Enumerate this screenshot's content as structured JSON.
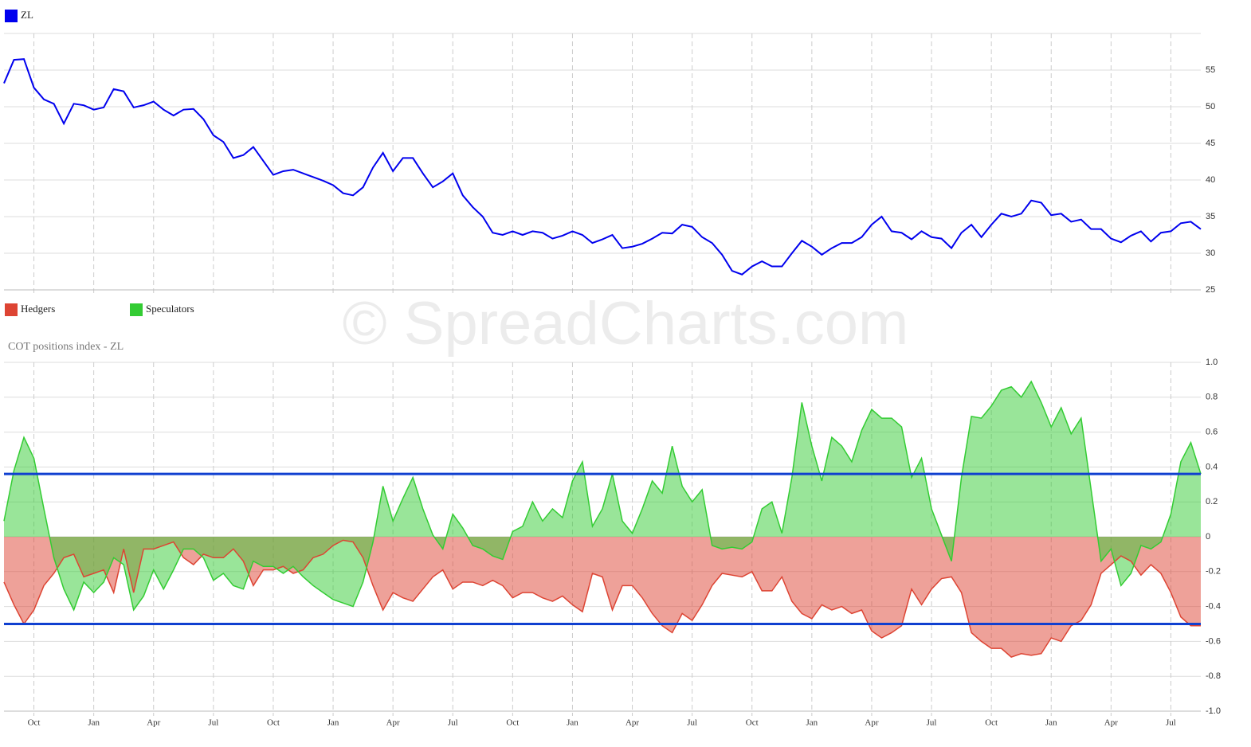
{
  "watermark": "© SpreadCharts.com",
  "chart_data": [
    {
      "type": "line",
      "series": [
        {
          "name": "ZL",
          "color": "#0000ee",
          "values": [
            53.2,
            56.4,
            56.5,
            52.6,
            51,
            50.4,
            47.7,
            50.4,
            50.2,
            49.6,
            49.9,
            52.4,
            52.1,
            49.9,
            50.2,
            50.7,
            49.6,
            48.8,
            49.6,
            49.7,
            48.3,
            46.1,
            45.2,
            43,
            43.4,
            44.5,
            42.6,
            40.7,
            41.2,
            41.4,
            40.9,
            40.4,
            39.9,
            39.3,
            38.2,
            37.9,
            39,
            41.7,
            43.7,
            41.2,
            43,
            43,
            40.9,
            39,
            39.8,
            40.9,
            37.9,
            36.3,
            35,
            32.8,
            32.5,
            33,
            32.5,
            33,
            32.8,
            32,
            32.4,
            33,
            32.5,
            31.4,
            31.9,
            32.5,
            30.7,
            30.9,
            31.3,
            32,
            32.8,
            32.7,
            33.9,
            33.6,
            32.2,
            31.4,
            29.8,
            27.6,
            27.1,
            28.2,
            28.9,
            28.2,
            28.2,
            30,
            31.7,
            30.9,
            29.8,
            30.7,
            31.4,
            31.4,
            32.2,
            33.9,
            35,
            33,
            32.8,
            31.9,
            33,
            32.2,
            32,
            30.7,
            32.8,
            33.9,
            32.2,
            33.9,
            35.4,
            35,
            35.4,
            37.2,
            36.9,
            35.2,
            35.4,
            34.3,
            34.6,
            33.3,
            33.3,
            32,
            31.5,
            32.4,
            33,
            31.6,
            32.8,
            33,
            34.1,
            34.3,
            33.3
          ]
        }
      ],
      "ylim": [
        25,
        60
      ],
      "yticks": [
        25,
        30,
        35,
        40,
        45,
        50,
        55
      ],
      "grid": true
    },
    {
      "type": "area",
      "title": "COT positions index - ZL",
      "categories": [
        null,
        null,
        null,
        "Oct",
        null,
        null,
        null,
        null,
        null,
        "Jan",
        null,
        null,
        null,
        null,
        null,
        "Apr",
        null,
        null,
        null,
        null,
        null,
        "Jul",
        null,
        null,
        null,
        null,
        null,
        "Oct",
        null,
        null,
        null,
        null,
        null,
        "Jan",
        null,
        null,
        null,
        null,
        null,
        "Apr",
        null,
        null,
        null,
        null,
        null,
        "Jul",
        null,
        null,
        null,
        null,
        null,
        "Oct",
        null,
        null,
        null,
        null,
        null,
        "Jan",
        null,
        null,
        null,
        null,
        null,
        "Apr",
        null,
        null,
        null,
        null,
        null,
        "Jul",
        null,
        null,
        null,
        null,
        null,
        "Oct",
        null,
        null,
        null,
        null,
        null,
        "Jan",
        null,
        null,
        null,
        null,
        null,
        "Apr",
        null,
        null,
        null,
        null,
        null,
        "Jul",
        null,
        null,
        null,
        null,
        null,
        "Oct",
        null,
        null,
        null,
        null,
        null,
        "Jan",
        null,
        null,
        null,
        null,
        null,
        "Apr",
        null,
        null,
        null,
        null,
        null,
        "Jul",
        null,
        null,
        null
      ],
      "series": [
        {
          "name": "Hedgers",
          "color": "#dd4433",
          "values": [
            -0.26,
            -0.39,
            -0.5,
            -0.42,
            -0.28,
            -0.21,
            -0.12,
            -0.1,
            -0.23,
            -0.21,
            -0.19,
            -0.32,
            -0.07,
            -0.32,
            -0.07,
            -0.07,
            -0.05,
            -0.03,
            -0.12,
            -0.16,
            -0.1,
            -0.12,
            -0.12,
            -0.07,
            -0.14,
            -0.28,
            -0.19,
            -0.19,
            -0.17,
            -0.21,
            -0.19,
            -0.12,
            -0.1,
            -0.05,
            -0.02,
            -0.03,
            -0.12,
            -0.28,
            -0.42,
            -0.32,
            -0.35,
            -0.37,
            -0.3,
            -0.23,
            -0.19,
            -0.3,
            -0.26,
            -0.26,
            -0.28,
            -0.25,
            -0.28,
            -0.35,
            -0.32,
            -0.32,
            -0.35,
            -0.37,
            -0.34,
            -0.39,
            -0.43,
            -0.21,
            -0.23,
            -0.42,
            -0.28,
            -0.28,
            -0.35,
            -0.44,
            -0.51,
            -0.55,
            -0.44,
            -0.48,
            -0.39,
            -0.28,
            -0.21,
            -0.22,
            -0.23,
            -0.2,
            -0.31,
            -0.31,
            -0.23,
            -0.37,
            -0.44,
            -0.47,
            -0.39,
            -0.42,
            -0.4,
            -0.44,
            -0.42,
            -0.54,
            -0.58,
            -0.55,
            -0.51,
            -0.3,
            -0.39,
            -0.3,
            -0.24,
            -0.23,
            -0.32,
            -0.55,
            -0.6,
            -0.64,
            -0.64,
            -0.69,
            -0.67,
            -0.68,
            -0.67,
            -0.58,
            -0.6,
            -0.51,
            -0.48,
            -0.39,
            -0.21,
            -0.16,
            -0.11,
            -0.14,
            -0.22,
            -0.16,
            -0.21,
            -0.32,
            -0.46,
            -0.51,
            -0.51
          ]
        },
        {
          "name": "Speculators",
          "color": "#33cc33",
          "values": [
            0.09,
            0.38,
            0.57,
            0.45,
            0.16,
            -0.12,
            -0.3,
            -0.42,
            -0.26,
            -0.32,
            -0.26,
            -0.12,
            -0.16,
            -0.42,
            -0.34,
            -0.19,
            -0.3,
            -0.19,
            -0.07,
            -0.07,
            -0.12,
            -0.25,
            -0.21,
            -0.28,
            -0.3,
            -0.14,
            -0.17,
            -0.17,
            -0.21,
            -0.17,
            -0.23,
            -0.28,
            -0.32,
            -0.36,
            -0.38,
            -0.4,
            -0.26,
            -0.03,
            0.29,
            0.09,
            0.22,
            0.34,
            0.16,
            0.01,
            -0.07,
            0.13,
            0.05,
            -0.05,
            -0.07,
            -0.11,
            -0.13,
            0.03,
            0.06,
            0.2,
            0.09,
            0.16,
            0.11,
            0.32,
            0.43,
            0.06,
            0.16,
            0.36,
            0.09,
            0.02,
            0.16,
            0.32,
            0.25,
            0.52,
            0.29,
            0.2,
            0.27,
            -0.05,
            -0.07,
            -0.06,
            -0.07,
            -0.03,
            0.16,
            0.2,
            0.02,
            0.34,
            0.77,
            0.52,
            0.32,
            0.57,
            0.52,
            0.43,
            0.61,
            0.73,
            0.68,
            0.68,
            0.63,
            0.34,
            0.45,
            0.16,
            0.01,
            -0.14,
            0.34,
            0.69,
            0.68,
            0.75,
            0.84,
            0.86,
            0.8,
            0.89,
            0.77,
            0.63,
            0.74,
            0.59,
            0.68,
            0.27,
            -0.14,
            -0.07,
            -0.28,
            -0.21,
            -0.05,
            -0.07,
            -0.03,
            0.13,
            0.43,
            0.54,
            0.36
          ]
        }
      ],
      "ylim": [
        -1,
        1
      ],
      "yticks": [
        {
          "value": -1,
          "label": "-1.0"
        },
        -0.8,
        -0.6,
        -0.4,
        -0.2,
        0,
        0.2,
        0.4,
        0.6,
        0.8,
        {
          "value": 1,
          "label": "1.0"
        }
      ],
      "hlines": [
        0.36,
        -0.5
      ],
      "hline_color": "#1040d0",
      "grid": true
    }
  ]
}
